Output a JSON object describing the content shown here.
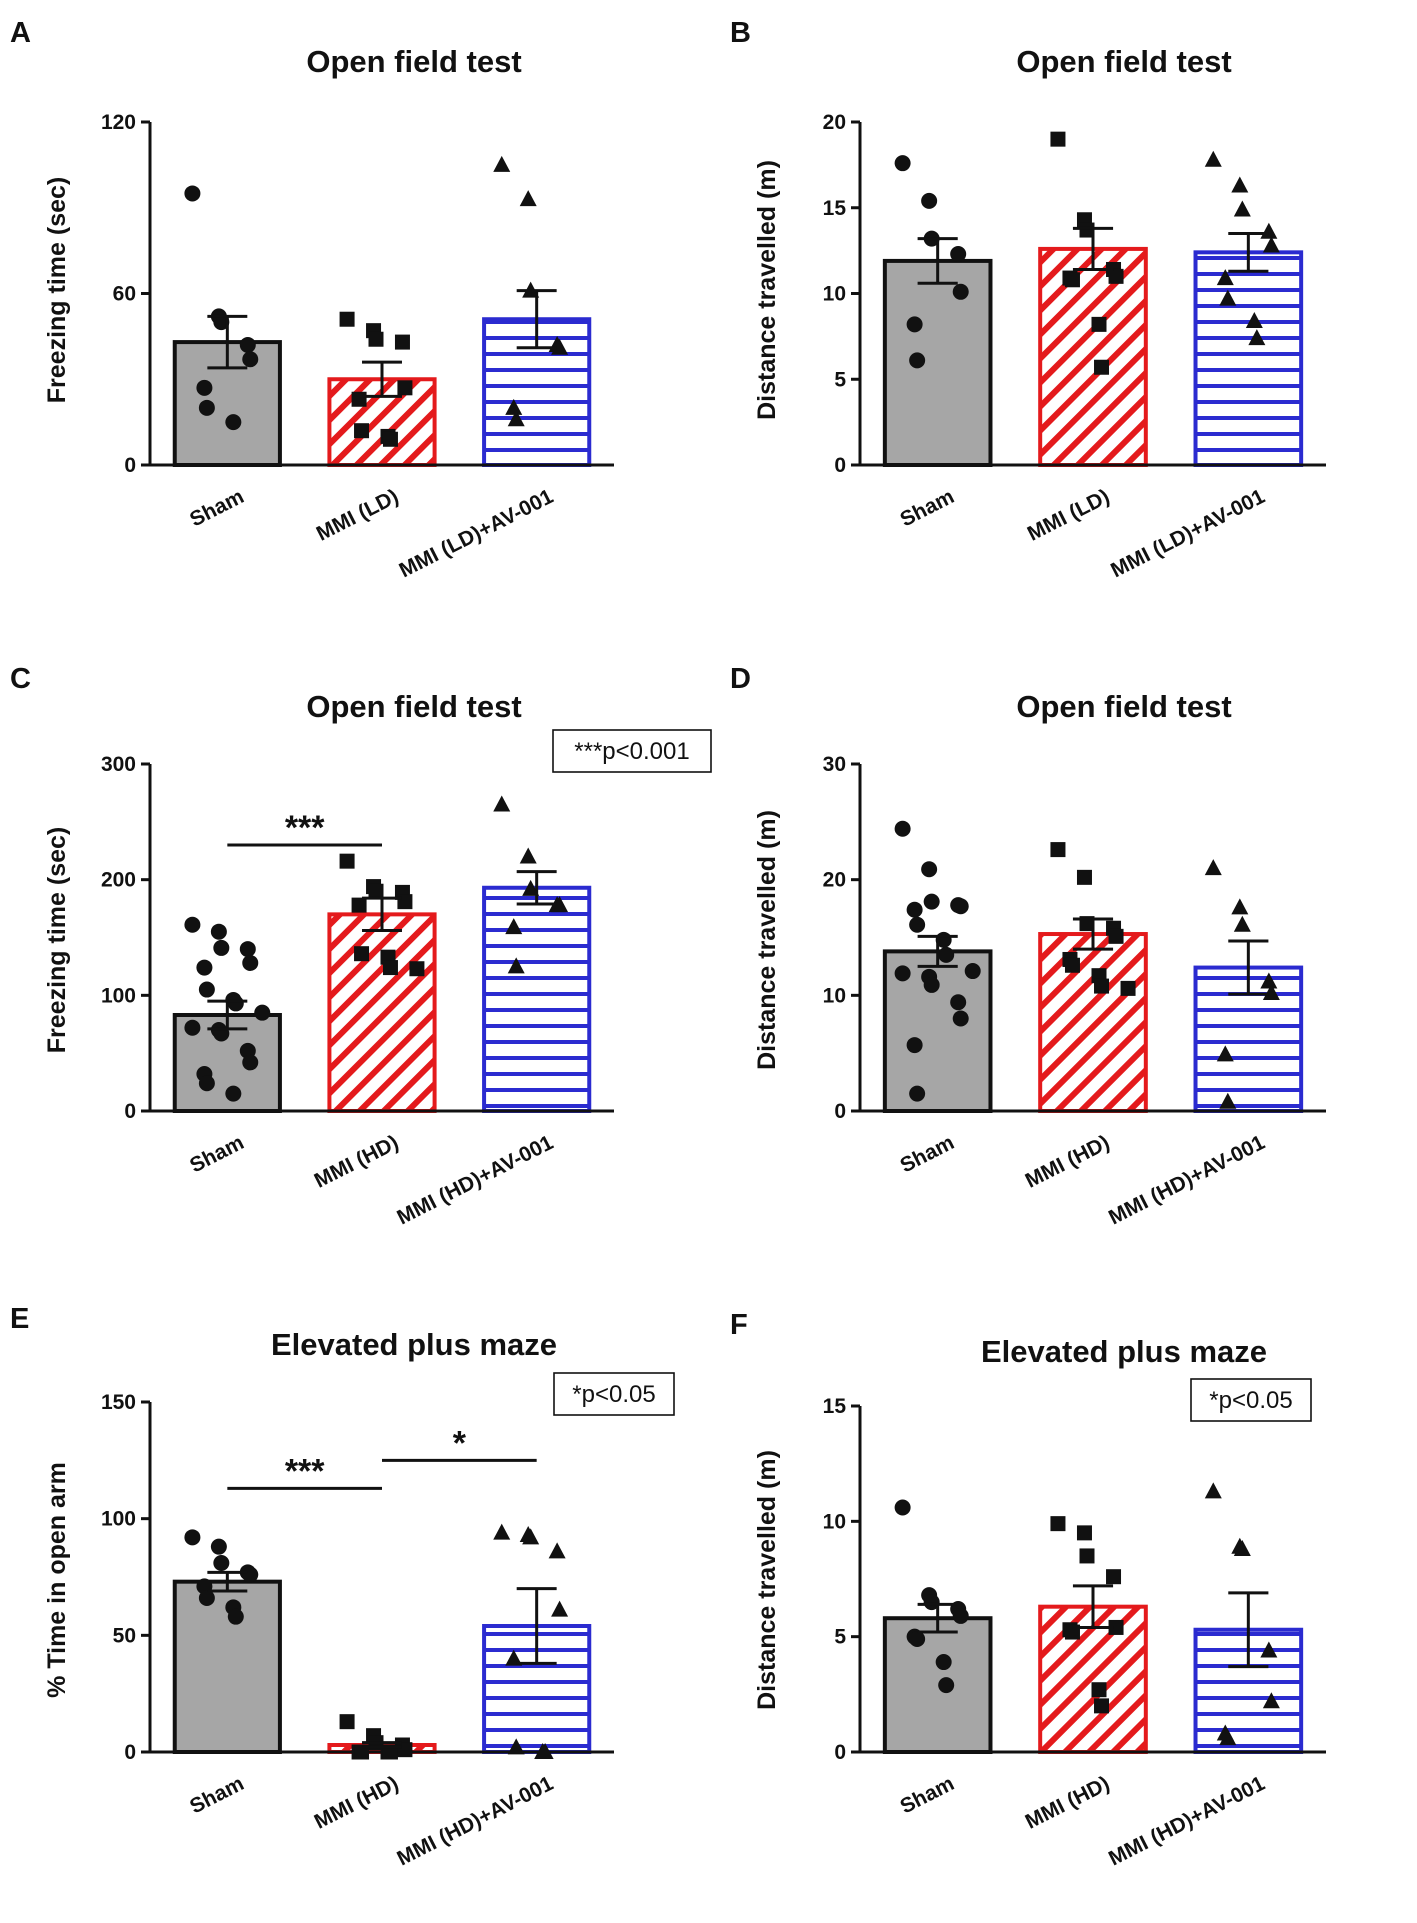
{
  "figure": {
    "aria_label": "Six bar chart panels A to F showing behavioural test results"
  },
  "colors": {
    "sham": "#a6a6a6",
    "red": "#e41a1c",
    "blue": "#2b2bd0",
    "axis": "#111111"
  },
  "chart_data": [
    {
      "panel": "A",
      "type": "bar",
      "title": "Open field test",
      "ylabel": "Freezing time (sec)",
      "ylim": [
        0,
        120
      ],
      "yticks": [
        0,
        60,
        120
      ],
      "categories": [
        "Sham",
        "MMI (LD)",
        "MMI (LD)+AV-001"
      ],
      "patterns": [
        "solid",
        "diagonal",
        "horizontal"
      ],
      "markers": [
        "circle",
        "square",
        "triangle"
      ],
      "values": [
        43,
        30,
        51
      ],
      "sem": [
        9,
        6,
        10
      ],
      "points": [
        [
          95,
          52,
          50,
          42,
          37,
          27,
          20,
          15
        ],
        [
          51,
          47,
          44,
          43,
          27,
          23,
          12,
          10,
          9
        ],
        [
          105,
          93,
          61,
          42,
          41,
          20,
          16
        ]
      ],
      "p_annotation": "",
      "significance": []
    },
    {
      "panel": "B",
      "type": "bar",
      "title": "Open field test",
      "ylabel": "Distance travelled (m)",
      "ylim": [
        0,
        20
      ],
      "yticks": [
        0,
        5,
        10,
        15,
        20
      ],
      "categories": [
        "Sham",
        "MMI (LD)",
        "MMI (LD)+AV-001"
      ],
      "patterns": [
        "solid",
        "diagonal",
        "horizontal"
      ],
      "markers": [
        "circle",
        "square",
        "triangle"
      ],
      "values": [
        11.9,
        12.6,
        12.4
      ],
      "sem": [
        1.3,
        1.2,
        1.1
      ],
      "points": [
        [
          17.6,
          15.4,
          13.2,
          12.3,
          10.1,
          8.2,
          6.1
        ],
        [
          19.0,
          14.3,
          13.7,
          11.4,
          11.0,
          10.9,
          10.8,
          8.2,
          5.7
        ],
        [
          17.8,
          16.3,
          14.9,
          13.6,
          12.8,
          10.9,
          9.7,
          8.4,
          7.4
        ]
      ],
      "p_annotation": "",
      "significance": []
    },
    {
      "panel": "C",
      "type": "bar",
      "title": "Open field test",
      "ylabel": "Freezing time (sec)",
      "ylim": [
        0,
        300
      ],
      "yticks": [
        0,
        100,
        200,
        300
      ],
      "categories": [
        "Sham",
        "MMI (HD)",
        "MMI (HD)+AV-001"
      ],
      "patterns": [
        "solid",
        "diagonal",
        "horizontal"
      ],
      "markers": [
        "circle",
        "square",
        "triangle"
      ],
      "values": [
        83,
        170,
        193
      ],
      "sem": [
        12,
        14,
        14
      ],
      "points": [
        [
          161,
          155,
          141,
          140,
          128,
          124,
          105,
          96,
          93,
          85,
          72,
          70,
          67,
          52,
          42,
          32,
          24,
          15
        ],
        [
          216,
          194,
          190,
          189,
          181,
          178,
          136,
          133,
          124,
          123
        ],
        [
          265,
          220,
          192,
          178,
          178,
          159,
          125
        ]
      ],
      "p_annotation": "***p<0.001",
      "significance": [
        {
          "from": 0,
          "to": 1,
          "y": 230,
          "label": "***"
        }
      ]
    },
    {
      "panel": "D",
      "type": "bar",
      "title": "Open field test",
      "ylabel": "Distance travelled (m)",
      "ylim": [
        0,
        30
      ],
      "yticks": [
        0,
        10,
        20,
        30
      ],
      "categories": [
        "Sham",
        "MMI (HD)",
        "MMI (HD)+AV-001"
      ],
      "patterns": [
        "solid",
        "diagonal",
        "horizontal"
      ],
      "markers": [
        "circle",
        "square",
        "triangle"
      ],
      "values": [
        13.8,
        15.3,
        12.4
      ],
      "sem": [
        1.3,
        1.3,
        2.3
      ],
      "points": [
        [
          24.4,
          20.9,
          18.1,
          17.8,
          17.7,
          17.4,
          16.1,
          14.8,
          13.5,
          12.1,
          11.9,
          11.6,
          10.9,
          9.4,
          8.0,
          5.7,
          1.5
        ],
        [
          22.6,
          20.2,
          16.2,
          15.8,
          15.1,
          13.1,
          12.6,
          11.7,
          10.8,
          10.6
        ],
        [
          21.0,
          17.6,
          16.1,
          11.2,
          10.2,
          4.9,
          0.8
        ]
      ],
      "p_annotation": "",
      "significance": []
    },
    {
      "panel": "E",
      "type": "bar",
      "title": "Elevated plus maze",
      "ylabel": "% Time in open arm",
      "ylim": [
        0,
        150
      ],
      "yticks": [
        0,
        50,
        100,
        150
      ],
      "categories": [
        "Sham",
        "MMI (HD)",
        "MMI (HD)+AV-001"
      ],
      "patterns": [
        "solid",
        "diagonal",
        "horizontal"
      ],
      "markers": [
        "circle",
        "square",
        "triangle"
      ],
      "values": [
        73,
        3,
        54
      ],
      "sem": [
        4,
        1,
        16
      ],
      "points": [
        [
          92,
          88,
          81,
          77,
          76,
          71,
          66,
          62,
          58
        ],
        [
          13,
          7,
          4,
          3,
          1,
          0,
          0,
          0,
          0
        ],
        [
          94,
          93,
          92,
          86,
          61,
          40,
          2,
          0,
          0
        ]
      ],
      "p_annotation": "*p<0.05",
      "significance": [
        {
          "from": 0,
          "to": 1,
          "y": 113,
          "label": "***"
        },
        {
          "from": 1,
          "to": 2,
          "y": 125,
          "label": "*"
        }
      ]
    },
    {
      "panel": "F",
      "type": "bar",
      "title": "Elevated plus maze",
      "ylabel": "Distance travelled (m)",
      "ylim": [
        0,
        15
      ],
      "yticks": [
        0,
        5,
        10,
        15
      ],
      "categories": [
        "Sham",
        "MMI (HD)",
        "MMI (HD)+AV-001"
      ],
      "patterns": [
        "solid",
        "diagonal",
        "horizontal"
      ],
      "markers": [
        "circle",
        "square",
        "triangle"
      ],
      "values": [
        5.8,
        6.3,
        5.3
      ],
      "sem": [
        0.6,
        0.9,
        1.6
      ],
      "points": [
        [
          10.6,
          6.8,
          6.5,
          6.2,
          5.9,
          5.0,
          4.9,
          3.9,
          2.9
        ],
        [
          9.9,
          9.5,
          8.5,
          7.6,
          5.4,
          5.3,
          5.2,
          2.7,
          2.0
        ],
        [
          11.3,
          8.9,
          8.8,
          4.4,
          2.2,
          0.8,
          0.6
        ]
      ],
      "p_annotation": "*p<0.05",
      "significance": []
    }
  ]
}
